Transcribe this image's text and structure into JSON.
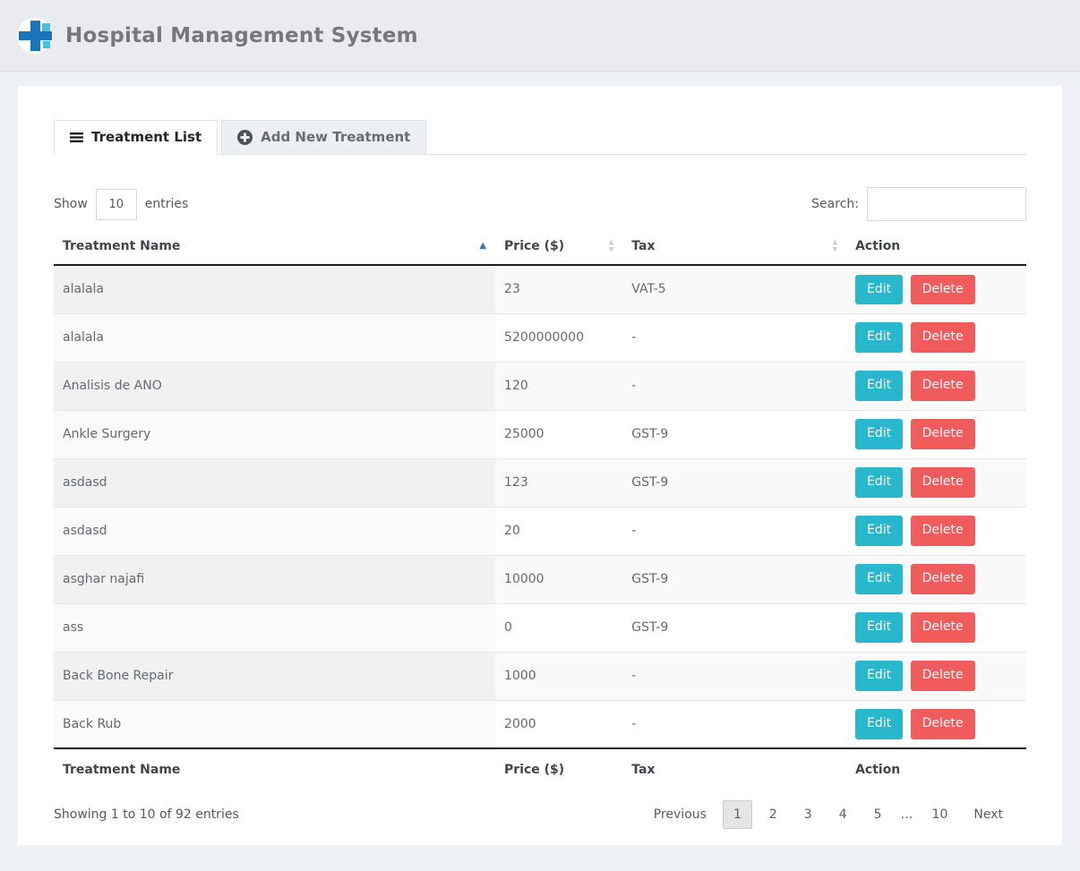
{
  "header": {
    "title": "Hospital Management System"
  },
  "tabs": [
    {
      "label": "Treatment List",
      "icon": "menu-icon",
      "active": true
    },
    {
      "label": "Add New Treatment",
      "icon": "plus-circle-icon",
      "active": false
    }
  ],
  "controls": {
    "show_label": "Show",
    "entries_value": "10",
    "entries_label": "entries",
    "search_label": "Search:",
    "search_value": ""
  },
  "table": {
    "columns": [
      "Treatment Name",
      "Price ($)",
      "Tax",
      "Action"
    ],
    "sorted_column": "Treatment Name",
    "sort_direction": "ascending",
    "rows": [
      {
        "name": "alalala",
        "price": "23",
        "tax": "VAT-5"
      },
      {
        "name": "alalala",
        "price": "5200000000",
        "tax": "-"
      },
      {
        "name": "Analisis de ANO",
        "price": "120",
        "tax": "-"
      },
      {
        "name": "Ankle Surgery",
        "price": "25000",
        "tax": "GST-9"
      },
      {
        "name": "asdasd",
        "price": "123",
        "tax": "GST-9"
      },
      {
        "name": "asdasd",
        "price": "20",
        "tax": "-"
      },
      {
        "name": "asghar najafi",
        "price": "10000",
        "tax": "GST-9"
      },
      {
        "name": "ass",
        "price": "0",
        "tax": "GST-9"
      },
      {
        "name": "Back Bone Repair",
        "price": "1000",
        "tax": "-"
      },
      {
        "name": "Back Rub",
        "price": "2000",
        "tax": "-"
      }
    ],
    "actions": {
      "edit": "Edit",
      "delete": "Delete"
    }
  },
  "footer": {
    "info": "Showing 1 to 10 of 92 entries",
    "pagination": {
      "previous": "Previous",
      "pages": [
        "1",
        "2",
        "3",
        "4",
        "5",
        "…",
        "10"
      ],
      "active_page": "1",
      "next": "Next"
    }
  },
  "colors": {
    "edit_button": "#29b7cd",
    "delete_button": "#f05c5c",
    "active_sort_arrow": "#3a76b0",
    "logo_blue": "#1b75bb",
    "logo_teal": "#35b7d9"
  }
}
